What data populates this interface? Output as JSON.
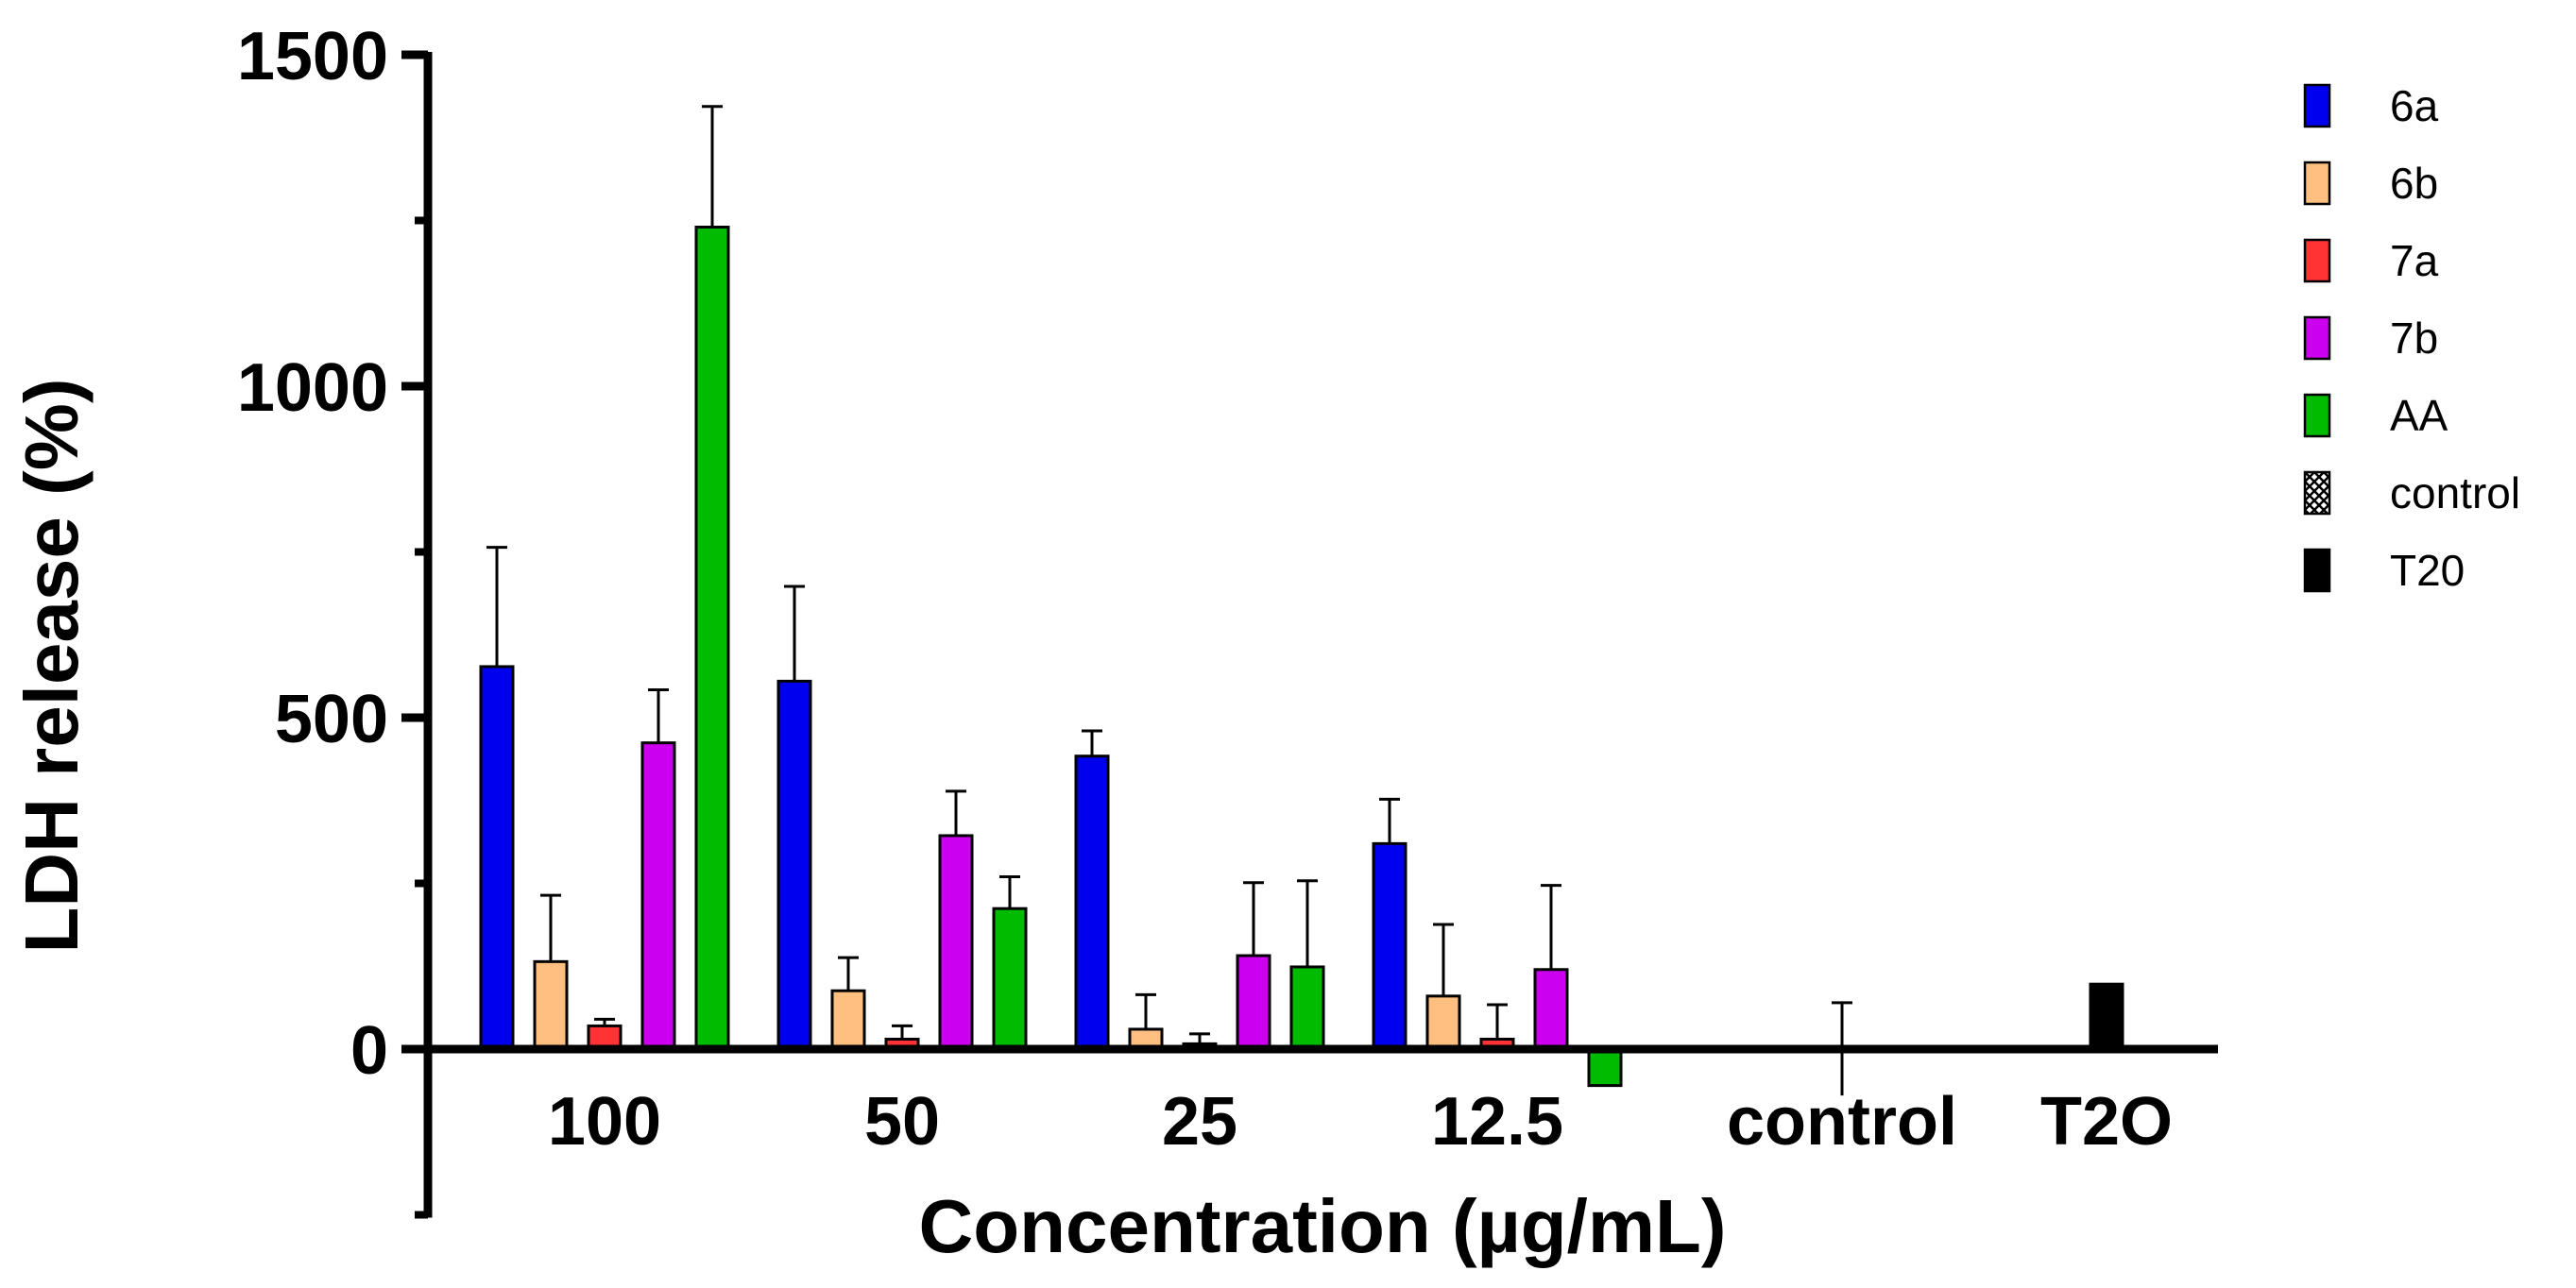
{
  "chart_data": {
    "type": "bar",
    "title": "",
    "xlabel": "Concentration (µg/mL)",
    "ylabel": "LDH release (%)",
    "ylim": [
      -250,
      1500
    ],
    "yticks": [
      0,
      500,
      1000,
      1500
    ],
    "yticks_minor": [
      -250,
      250,
      750,
      1250
    ],
    "categories": [
      "100",
      "50",
      "25",
      "12.5",
      "control",
      "T2O"
    ],
    "series": [
      {
        "name": "6a",
        "color": "#0000ee",
        "pattern": "solid",
        "values": [
          577,
          555,
          442,
          310,
          null,
          null
        ],
        "errors": [
          180,
          143,
          38,
          67,
          null,
          null
        ]
      },
      {
        "name": "6b",
        "color": "#ffbf80",
        "pattern": "solid",
        "values": [
          132,
          88,
          30,
          80,
          null,
          null
        ],
        "errors": [
          100,
          50,
          52,
          108,
          null,
          null
        ]
      },
      {
        "name": "7a",
        "color": "#ff3333",
        "pattern": "solid",
        "values": [
          35,
          15,
          8,
          15,
          null,
          null
        ],
        "errors": [
          10,
          20,
          15,
          52,
          null,
          null
        ]
      },
      {
        "name": "7b",
        "color": "#cc00ee",
        "pattern": "solid",
        "values": [
          462,
          322,
          141,
          120,
          null,
          null
        ],
        "errors": [
          80,
          67,
          110,
          127,
          null,
          null
        ]
      },
      {
        "name": "AA",
        "color": "#00bb00",
        "pattern": "solid",
        "values": [
          1240,
          212,
          124,
          -55,
          null,
          null
        ],
        "errors": [
          182,
          48,
          130,
          0,
          null,
          null
        ]
      },
      {
        "name": "control",
        "color": "#000000",
        "pattern": "crosshatch",
        "values": [
          null,
          null,
          null,
          null,
          0,
          null
        ],
        "errors": [
          null,
          null,
          null,
          null,
          70,
          null
        ]
      },
      {
        "name": "T20",
        "color": "#000000",
        "pattern": "solid",
        "values": [
          null,
          null,
          null,
          null,
          null,
          98
        ],
        "errors": [
          null,
          null,
          null,
          null,
          null,
          0
        ]
      }
    ],
    "legend_position": "right"
  }
}
